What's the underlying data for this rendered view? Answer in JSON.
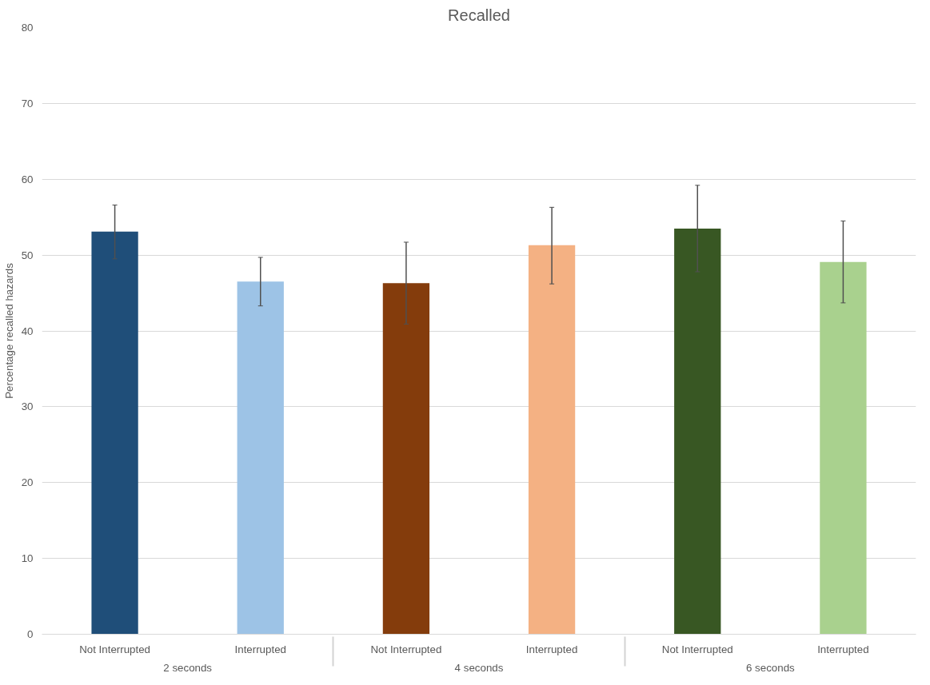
{
  "chart_data": {
    "type": "bar",
    "title": "Recalled",
    "ylabel": "Percentage recalled hazards",
    "categories": [
      "Not Interrupted",
      "Interrupted",
      "Not Interrupted",
      "Interrupted",
      "Not Interrupted",
      "Interrupted"
    ],
    "annotations": [
      "2 seconds",
      "4 seconds",
      "6 seconds"
    ],
    "values": [
      53.1,
      46.5,
      46.3,
      51.3,
      53.5,
      49.1
    ],
    "colors": [
      "#1f4e79",
      "#9dc3e6",
      "#843c0c",
      "#f4b183",
      "#385723",
      "#a9d18e"
    ],
    "errors": [
      [
        49.5,
        56.6
      ],
      [
        43.3,
        49.7
      ],
      [
        40.9,
        51.7
      ],
      [
        46.2,
        56.3
      ],
      [
        47.8,
        59.2
      ],
      [
        43.7,
        54.5
      ]
    ],
    "ylim": [
      0,
      80
    ],
    "yticks": [
      0,
      10,
      20,
      30,
      40,
      50,
      60,
      70,
      80
    ],
    "grid": "y"
  }
}
